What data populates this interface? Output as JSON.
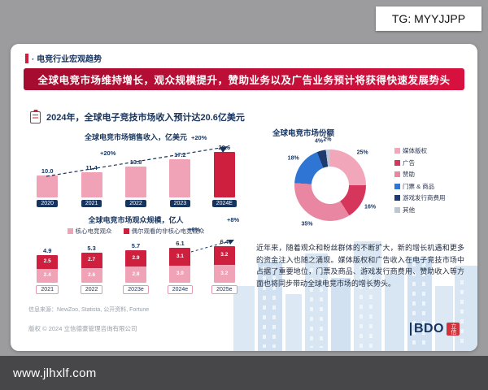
{
  "overlay": {
    "tg_badge": "TG: MYYJJPP",
    "watermark_url": "www.jlhxlf.com"
  },
  "slide": {
    "section_tag": "· 电竞行业宏观趋势",
    "headline": "全球电竞市场维持增长，观众规模提升，赞助业务以及广告业务预计将获得快速发展势头",
    "key_point": "2024年，全球电子竞技市场收入预计达20.6亿美元",
    "commentary": "近年来，随着观众和粉丝群体的不断扩大，新的增长机遇和更多的资金注入也随之涌现。媒体版权和广告收入在电子竞技市场中占据了重要地位，门票及商品、游戏发行商费用、赞助收入等方面也将同步带动全球电竞市场的增长势头。",
    "source_line": "信息来源：NewZoo, Statista, 公开资料, Fortune",
    "copyright": "版权 © 2024 立信德豪管理咨询有限公司",
    "logo": {
      "brand": "BDO",
      "seal": "立信"
    }
  },
  "colors": {
    "accent_red": "#cf1f3f",
    "navy": "#17345f",
    "bar_pink": "#f0a2b6",
    "bar_crimson": "#cf1f3f",
    "background_gray": "#9c9c9e"
  },
  "chart_data": [
    {
      "type": "bar",
      "title": "全球电竞市场销售收入，亿美元",
      "categories": [
        "2020",
        "2021",
        "2022",
        "2023",
        "2024E"
      ],
      "values": [
        10.0,
        11.4,
        13.8,
        17.2,
        20.6
      ],
      "growth_labels": [
        "+20%",
        "+20%"
      ],
      "ylim": [
        0,
        24
      ],
      "bar_color": "#f0a2b6",
      "highlight_color": "#cf1f3f",
      "unit": "亿美元"
    },
    {
      "type": "pie",
      "variant": "donut",
      "title": "全球电竞市场份额",
      "slices": [
        {
          "label": "媒体版权",
          "value": 25,
          "color": "#f2a6ba"
        },
        {
          "label": "广告",
          "value": 16,
          "color": "#d6365c"
        },
        {
          "label": "赞助",
          "value": 35,
          "color": "#e987a3"
        },
        {
          "label": "门票 & 商品",
          "value": 18,
          "color": "#2e75d4"
        },
        {
          "label": "游戏发行商费用",
          "value": 4,
          "color": "#1f3a6e"
        },
        {
          "label": "其他",
          "value": 2,
          "color": "#bcc7d4"
        }
      ]
    },
    {
      "type": "bar",
      "variant": "stacked",
      "title": "全球电竞市场观众规模，亿人",
      "categories": [
        "2021",
        "2022",
        "2023e",
        "2024e",
        "2025e"
      ],
      "series": [
        {
          "name": "核心电竞观众",
          "color": "#f0a2b6",
          "values": [
            2.4,
            2.6,
            2.8,
            3.0,
            3.2
          ]
        },
        {
          "name": "偶尔观看的非核心电竞观众",
          "color": "#cf1f3f",
          "values": [
            2.5,
            2.7,
            2.9,
            3.1,
            3.2
          ]
        }
      ],
      "totals": [
        4.9,
        5.3,
        5.7,
        6.1,
        6.4
      ],
      "growth_labels": [
        "+6%",
        "+8%"
      ],
      "ylim": [
        0,
        8
      ],
      "unit": "亿人"
    }
  ]
}
